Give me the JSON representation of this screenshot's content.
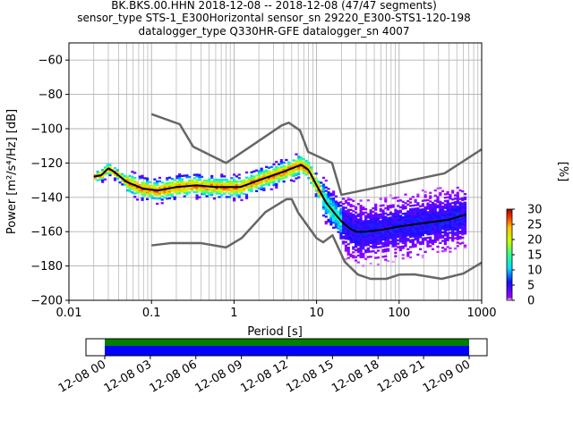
{
  "chart_data": [
    {
      "type": "heatmap",
      "title_lines": [
        "BK.BKS.00.HHN   2018-12-08 -- 2018-12-08  (47/47 segments)",
        "sensor_type STS-1_E300Horizontal sensor_sn 29220_E300-STS1-120-198",
        "datalogger_type Q330HR-GFE datalogger_sn 4007"
      ],
      "xlabel": "Period [s]",
      "ylabel": "Power [m²/s⁴/Hz] [dB]",
      "xscale": "log",
      "xlim": [
        0.01,
        1000
      ],
      "ylim": [
        -200,
        -50
      ],
      "grid": true,
      "x_tick_labels": [
        "0.01",
        "0.1",
        "1",
        "10",
        "100",
        "1000"
      ],
      "y_tick_labels": [
        "-200",
        "-180",
        "-160",
        "-140",
        "-120",
        "-100",
        "-80",
        "-60"
      ],
      "mode_curve": {
        "x": [
          0.02,
          0.025,
          0.03,
          0.035,
          0.05,
          0.08,
          0.12,
          0.2,
          0.35,
          0.6,
          1.2,
          2.0,
          4.0,
          6.5,
          8.0,
          10.0,
          13.0,
          17.0,
          20.0,
          25.0,
          30.0,
          40.0,
          60.0,
          100.0,
          200.0,
          400.0,
          650.0
        ],
        "y": [
          -128,
          -127,
          -123,
          -125,
          -131,
          -135,
          -136,
          -134,
          -133,
          -134,
          -134,
          -130,
          -125,
          -121,
          -124,
          -133,
          -143,
          -150,
          -154,
          -158,
          -160,
          -160,
          -159,
          -157,
          -155,
          -153,
          -150
        ]
      },
      "noise_model_high": {
        "x": [
          0.1,
          0.22,
          0.32,
          0.8,
          3.8,
          4.6,
          6.3,
          7.9,
          15.4,
          20.0,
          354.8,
          1000.0
        ],
        "y": [
          -91.5,
          -97.4,
          -110.5,
          -120.0,
          -98.0,
          -96.5,
          -101.0,
          -113.5,
          -120.0,
          -138.5,
          -126.0,
          -112.0
        ]
      },
      "noise_model_low": {
        "x": [
          0.1,
          0.17,
          0.4,
          0.8,
          1.24,
          2.4,
          4.3,
          5.0,
          6.0,
          10.0,
          12.0,
          15.6,
          21.9,
          31.6,
          45.0,
          70.0,
          101.0,
          154.0,
          328.0,
          600.0,
          1000.0
        ],
        "y": [
          -168.0,
          -166.7,
          -166.7,
          -169.2,
          -163.7,
          -148.6,
          -141.1,
          -141.1,
          -149.0,
          -163.8,
          -166.2,
          -162.1,
          -177.5,
          -185.0,
          -187.5,
          -187.5,
          -185.0,
          -184.9,
          -187.5,
          -184.4,
          -178.0
        ]
      },
      "colorbar": {
        "label": "[%]",
        "min": 0,
        "max": 30,
        "tick_labels": [
          "0",
          "5",
          "10",
          "15",
          "20",
          "25",
          "30"
        ]
      },
      "time_axis": {
        "tick_labels": [
          "12-08 00",
          "12-08 03",
          "12-08 06",
          "12-08 09",
          "12-08 12",
          "12-08 15",
          "12-08 18",
          "12-08 21",
          "12-09 00"
        ],
        "coverage": {
          "green_start_hour": 0,
          "green_end_hour": 24,
          "blue_start_hour": 0,
          "blue_end_hour": 24
        }
      }
    }
  ]
}
